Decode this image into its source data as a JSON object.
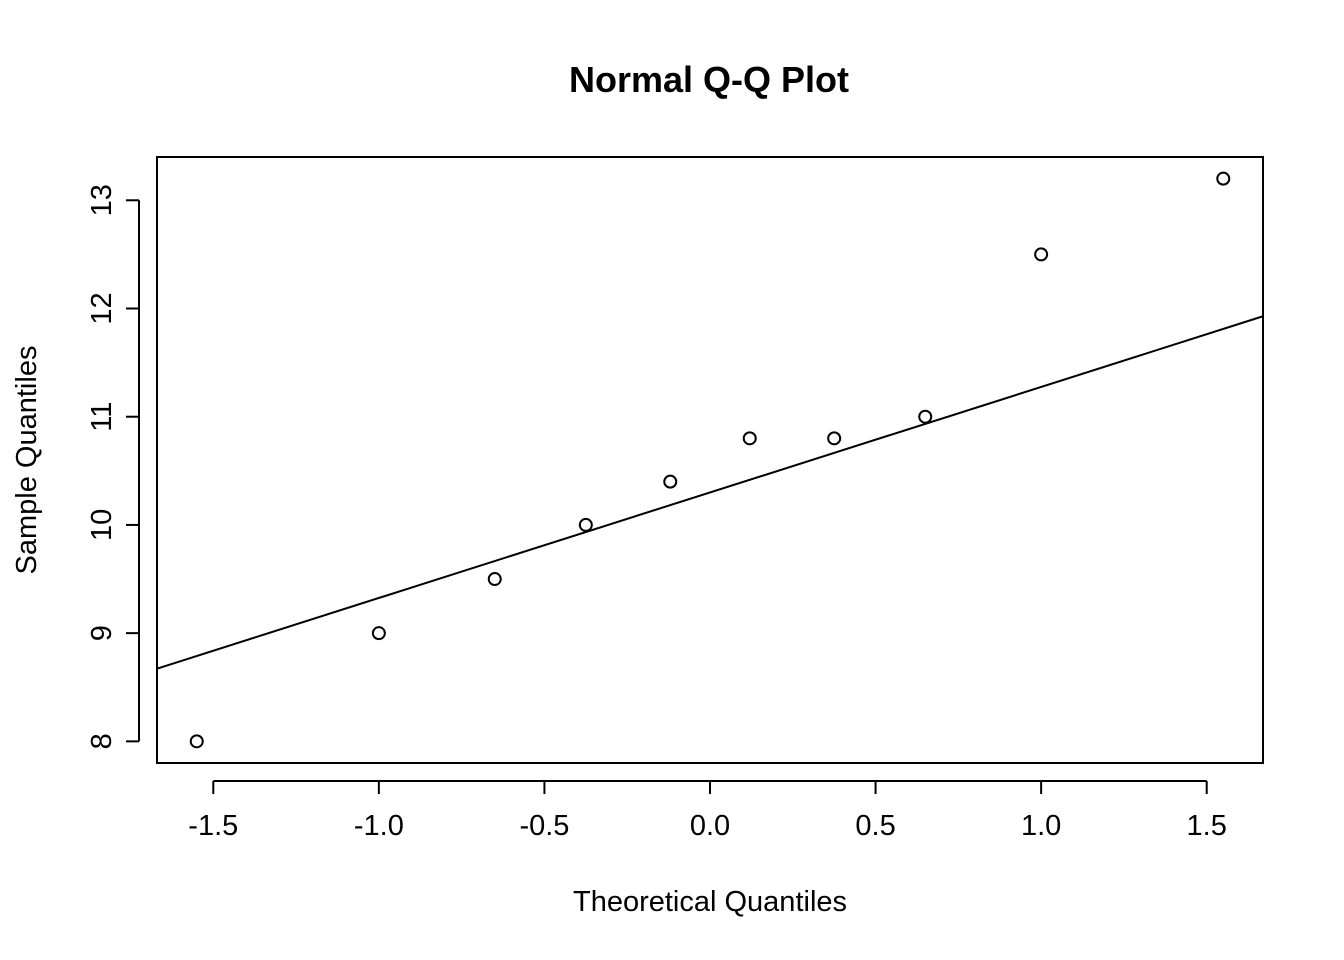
{
  "chart_data": {
    "type": "scatter",
    "title": "Normal Q-Q Plot",
    "xlabel": "Theoretical Quantiles",
    "ylabel": "Sample Quantiles",
    "xlim": [
      -1.67,
      1.67
    ],
    "ylim": [
      7.8,
      13.4
    ],
    "x_ticks": [
      -1.5,
      -1.0,
      -0.5,
      0.0,
      0.5,
      1.0,
      1.5
    ],
    "x_tick_labels": [
      "-1.5",
      "-1.0",
      "-0.5",
      "0.0",
      "0.5",
      "1.0",
      "1.5"
    ],
    "y_ticks": [
      8,
      9,
      10,
      11,
      12,
      13
    ],
    "y_tick_labels": [
      "8",
      "9",
      "10",
      "11",
      "12",
      "13"
    ],
    "grid": false,
    "points": [
      {
        "x": -1.55,
        "y": 8.0
      },
      {
        "x": -1.0,
        "y": 9.0
      },
      {
        "x": -0.65,
        "y": 9.5
      },
      {
        "x": -0.375,
        "y": 10.0
      },
      {
        "x": -0.12,
        "y": 10.4
      },
      {
        "x": 0.12,
        "y": 10.8
      },
      {
        "x": 0.375,
        "y": 10.8
      },
      {
        "x": 0.65,
        "y": 11.0
      },
      {
        "x": 1.0,
        "y": 12.5
      },
      {
        "x": 1.55,
        "y": 13.2
      }
    ],
    "reference_line": {
      "type": "qqline",
      "intercept": 10.3,
      "slope": 0.975
    },
    "colors": {
      "points": "#000000",
      "line": "#000000",
      "frame": "#000000",
      "background": "#ffffff"
    }
  }
}
